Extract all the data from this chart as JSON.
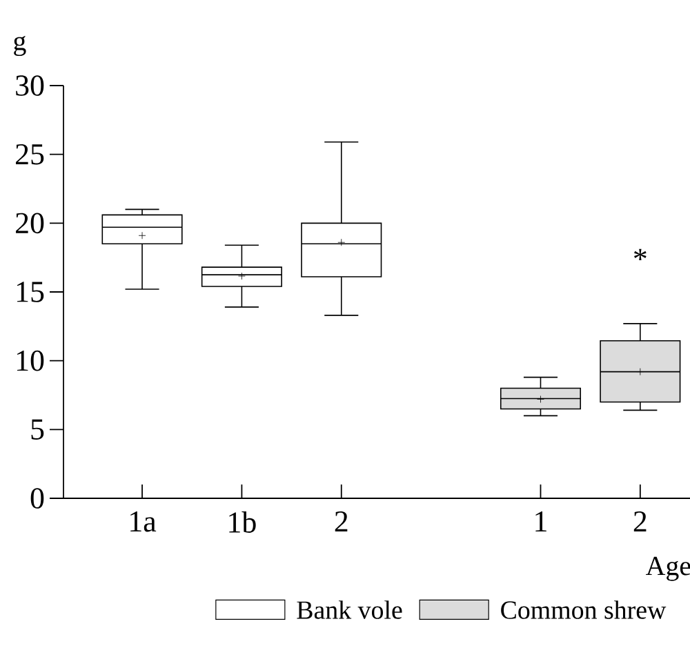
{
  "chart_data": {
    "type": "box",
    "ylabel": "g",
    "xlabel": "Age",
    "categories": [
      "1a",
      "1b",
      "2",
      null,
      "1",
      "2"
    ],
    "ylim": [
      0,
      30
    ],
    "yticks": [
      0,
      5,
      10,
      15,
      20,
      25,
      30
    ],
    "legend": "bottom",
    "annotations": [
      "*"
    ],
    "series": [
      {
        "name": "Bank vole",
        "color": "#ffffff",
        "boxes": [
          {
            "low": 15.2,
            "q1": 18.5,
            "median": 19.7,
            "q3": 20.6,
            "high": 21.0,
            "mean": 19.1
          },
          {
            "low": 13.9,
            "q1": 15.4,
            "median": 16.25,
            "q3": 16.8,
            "high": 18.4,
            "mean": 16.15
          },
          {
            "low": 13.3,
            "q1": 16.1,
            "median": 18.5,
            "q3": 20.0,
            "high": 25.9,
            "mean": 18.6
          },
          null,
          null,
          null
        ]
      },
      {
        "name": "Common shrew",
        "color": "#dcdcdc",
        "boxes": [
          null,
          null,
          null,
          null,
          {
            "low": 6.0,
            "q1": 6.5,
            "median": 7.25,
            "q3": 8.0,
            "high": 8.8,
            "mean": 7.2
          },
          {
            "low": 6.4,
            "q1": 7.0,
            "median": 9.2,
            "q3": 11.45,
            "high": 12.7,
            "mean": 9.2
          }
        ]
      }
    ]
  }
}
